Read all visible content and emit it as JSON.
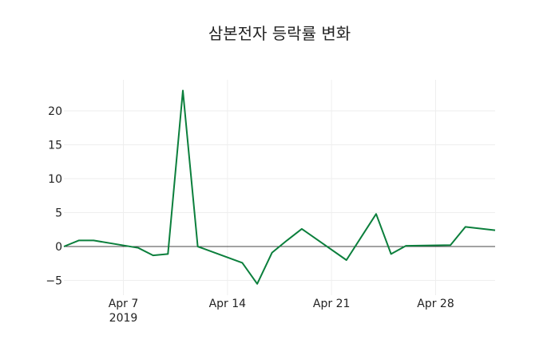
{
  "chart_data": {
    "type": "line",
    "title": "삼본전자 등락률 변화",
    "xlabel": "",
    "ylabel": "",
    "ylim": [
      -7.5,
      24.5
    ],
    "grid": true,
    "legend": null,
    "line_color": "#0b7f3c",
    "x_ticks": [
      {
        "label": "Apr 7",
        "sublabel": "2019",
        "date": "2019-04-07"
      },
      {
        "label": "Apr 14",
        "sublabel": "",
        "date": "2019-04-14"
      },
      {
        "label": "Apr 21",
        "sublabel": "",
        "date": "2019-04-21"
      },
      {
        "label": "Apr 28",
        "sublabel": "",
        "date": "2019-04-28"
      }
    ],
    "y_ticks": [
      -5,
      0,
      5,
      10,
      15,
      20
    ],
    "y_tick_labels": [
      "−5",
      "0",
      "5",
      "10",
      "15",
      "20"
    ],
    "x_range": [
      "2019-04-03",
      "2019-05-02"
    ],
    "series": [
      {
        "name": "등락률",
        "x": [
          "2019-04-03",
          "2019-04-04",
          "2019-04-05",
          "2019-04-08",
          "2019-04-09",
          "2019-04-10",
          "2019-04-11",
          "2019-04-12",
          "2019-04-15",
          "2019-04-16",
          "2019-04-17",
          "2019-04-18",
          "2019-04-19",
          "2019-04-22",
          "2019-04-23",
          "2019-04-24",
          "2019-04-25",
          "2019-04-26",
          "2019-04-29",
          "2019-04-30",
          "2019-05-02"
        ],
        "values": [
          0.0,
          0.9,
          0.9,
          -0.2,
          -1.3,
          -1.1,
          23.0,
          0.0,
          -2.4,
          -5.5,
          -0.9,
          0.9,
          2.6,
          -2.0,
          1.4,
          4.8,
          -1.1,
          0.1,
          0.2,
          2.9,
          2.4
        ]
      }
    ]
  }
}
